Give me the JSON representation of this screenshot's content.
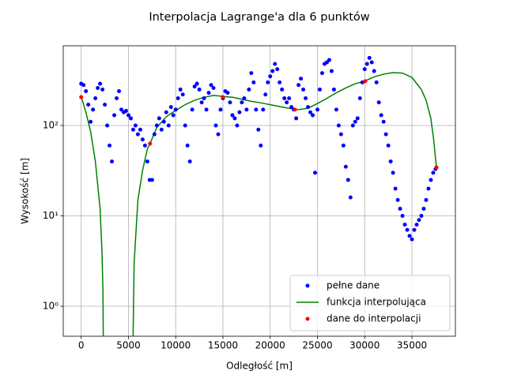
{
  "chart_data": {
    "type": "scatter-line",
    "title": "Interpolacja Lagrange'a dla 6 punktów",
    "xlabel": "Odległość [m]",
    "ylabel": "Wysokość [m]",
    "xlim": [
      -1900,
      39600
    ],
    "ylim": [
      0.466,
      762
    ],
    "log_y": true,
    "grid": true,
    "legend": "lower right",
    "xticks": [
      0,
      5000,
      10000,
      15000,
      20000,
      25000,
      30000,
      35000
    ],
    "yticks": [
      {
        "value": 1,
        "label": "10⁰"
      },
      {
        "value": 10,
        "label": "10¹"
      },
      {
        "value": 100,
        "label": "10²"
      }
    ],
    "series": [
      {
        "name": "pełne dane",
        "kind": "points",
        "color": "#0000ff",
        "x": [
          0,
          250,
          500,
          750,
          1000,
          1250,
          1500,
          1750,
          2000,
          2250,
          2500,
          2750,
          3000,
          3250,
          3500,
          3750,
          4000,
          4250,
          4500,
          4750,
          5000,
          5250,
          5500,
          5750,
          6000,
          6250,
          6500,
          6750,
          7000,
          7250,
          7500,
          7750,
          8000,
          8250,
          8500,
          8750,
          9000,
          9250,
          9500,
          9750,
          10000,
          10250,
          10500,
          10750,
          11000,
          11250,
          11500,
          11750,
          12000,
          12250,
          12500,
          12750,
          13000,
          13250,
          13500,
          13750,
          14000,
          14250,
          14500,
          14750,
          15000,
          15250,
          15500,
          15750,
          16000,
          16250,
          16500,
          16750,
          17000,
          17250,
          17500,
          17750,
          18000,
          18250,
          18500,
          18750,
          19000,
          19250,
          19500,
          19750,
          20000,
          20250,
          20500,
          20750,
          21000,
          21250,
          21500,
          21750,
          22000,
          22250,
          22500,
          22750,
          23000,
          23250,
          23500,
          23750,
          24000,
          24250,
          24500,
          24750,
          25000,
          25250,
          25500,
          25750,
          26000,
          26250,
          26500,
          26750,
          27000,
          27250,
          27500,
          27750,
          28000,
          28250,
          28500,
          28750,
          29000,
          29250,
          29500,
          29750,
          30000,
          30250,
          30500,
          30750,
          31000,
          31250,
          31500,
          31750,
          32000,
          32250,
          32500,
          32750,
          33000,
          33250,
          33500,
          33750,
          34000,
          34250,
          34500,
          34750,
          35000,
          35250,
          35500,
          35750,
          36000,
          36250,
          36500,
          36750,
          37000,
          37250,
          37500
        ],
        "values": [
          290,
          280,
          240,
          170,
          110,
          150,
          200,
          260,
          290,
          250,
          170,
          100,
          60,
          40,
          130,
          200,
          240,
          150,
          140,
          145,
          130,
          120,
          90,
          100,
          80,
          90,
          70,
          60,
          40,
          25,
          25,
          80,
          100,
          120,
          90,
          110,
          140,
          100,
          160,
          130,
          150,
          200,
          250,
          220,
          100,
          60,
          40,
          150,
          270,
          290,
          250,
          180,
          200,
          150,
          230,
          280,
          260,
          100,
          80,
          150,
          200,
          240,
          230,
          180,
          130,
          120,
          100,
          140,
          180,
          200,
          150,
          250,
          380,
          300,
          150,
          90,
          60,
          150,
          220,
          300,
          350,
          400,
          480,
          420,
          300,
          250,
          200,
          180,
          200,
          160,
          150,
          120,
          280,
          330,
          250,
          200,
          160,
          140,
          130,
          30,
          150,
          250,
          380,
          480,
          500,
          530,
          400,
          250,
          150,
          100,
          80,
          60,
          35,
          25,
          16,
          100,
          110,
          120,
          200,
          300,
          420,
          480,
          560,
          500,
          400,
          300,
          180,
          130,
          110,
          80,
          60,
          40,
          30,
          20,
          15,
          12,
          10,
          8,
          7,
          6,
          5.5,
          7,
          8,
          9,
          10,
          12,
          15,
          20,
          25,
          30,
          33
        ]
      },
      {
        "name": "funkcja interpolująca",
        "kind": "line",
        "color": "#008000",
        "x": [
          0,
          500,
          1000,
          1500,
          2000,
          2200,
          2300,
          2380,
          4000,
          5400,
          5600,
          6000,
          6500,
          7000,
          7284,
          8000,
          9000,
          10000,
          11000,
          12000,
          13000,
          14000,
          15000,
          16000,
          17000,
          18000,
          19000,
          20000,
          21000,
          22000,
          23000,
          24000,
          25000,
          26000,
          27000,
          28000,
          29000,
          30000,
          31000,
          32000,
          33000,
          34000,
          35000,
          36000,
          36500,
          37000,
          37300,
          37595
        ],
        "values": [
          210,
          140,
          85,
          40,
          12,
          4,
          1.5,
          0.1,
          null,
          0.1,
          3,
          15,
          32,
          55,
          63,
          95,
          125,
          147,
          170,
          190,
          205,
          215,
          210,
          205,
          195,
          185,
          178,
          170,
          162,
          155,
          150,
          155,
          175,
          200,
          230,
          260,
          290,
          310,
          345,
          370,
          385,
          380,
          340,
          250,
          190,
          120,
          70,
          34
        ]
      },
      {
        "name": "dane do interpolacji",
        "kind": "points",
        "color": "#ff0000",
        "x": [
          0,
          7284,
          14988,
          22607,
          30059,
          37595
        ],
        "values": [
          206,
          63,
          206,
          150,
          309,
          34.4
        ]
      }
    ]
  }
}
